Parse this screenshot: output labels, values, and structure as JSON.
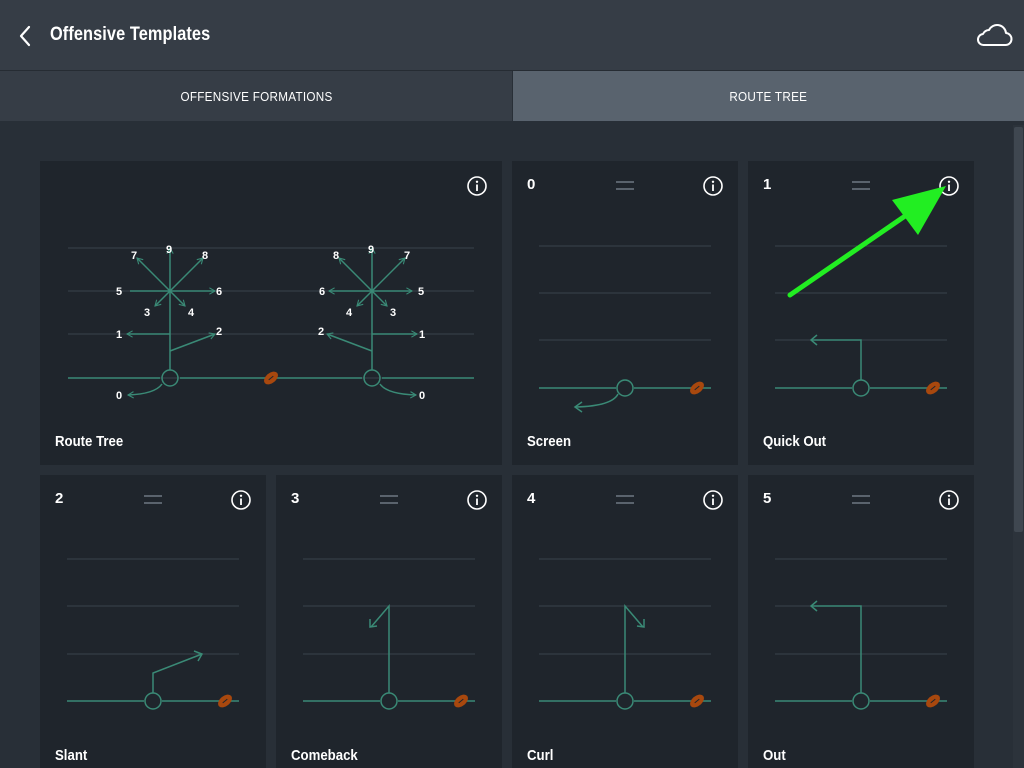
{
  "header": {
    "title": "Offensive Templates",
    "back_icon": "chevron-left-icon",
    "cloud_icon": "cloud-icon"
  },
  "tabs": [
    {
      "label": "OFFENSIVE FORMATIONS",
      "selected": false
    },
    {
      "label": "ROUTE TREE",
      "selected": true
    }
  ],
  "colors": {
    "route": "#3a8a76",
    "ball": "#a8480e",
    "yard_line": "#3a424b",
    "card_bg": "#1f252c",
    "arrow_annotation": "#22ee22"
  },
  "route_tree_card": {
    "label": "Route Tree",
    "left_numbers": [
      "7",
      "9",
      "8",
      "5",
      "6",
      "3",
      "4",
      "1",
      "2",
      "0"
    ],
    "right_numbers": [
      "8",
      "9",
      "7",
      "6",
      "5",
      "4",
      "3",
      "2",
      "1",
      "0"
    ]
  },
  "cards": [
    {
      "number": "0",
      "label": "Screen"
    },
    {
      "number": "1",
      "label": "Quick Out"
    },
    {
      "number": "2",
      "label": "Slant"
    },
    {
      "number": "3",
      "label": "Comeback"
    },
    {
      "number": "4",
      "label": "Curl"
    },
    {
      "number": "5",
      "label": "Out"
    }
  ]
}
